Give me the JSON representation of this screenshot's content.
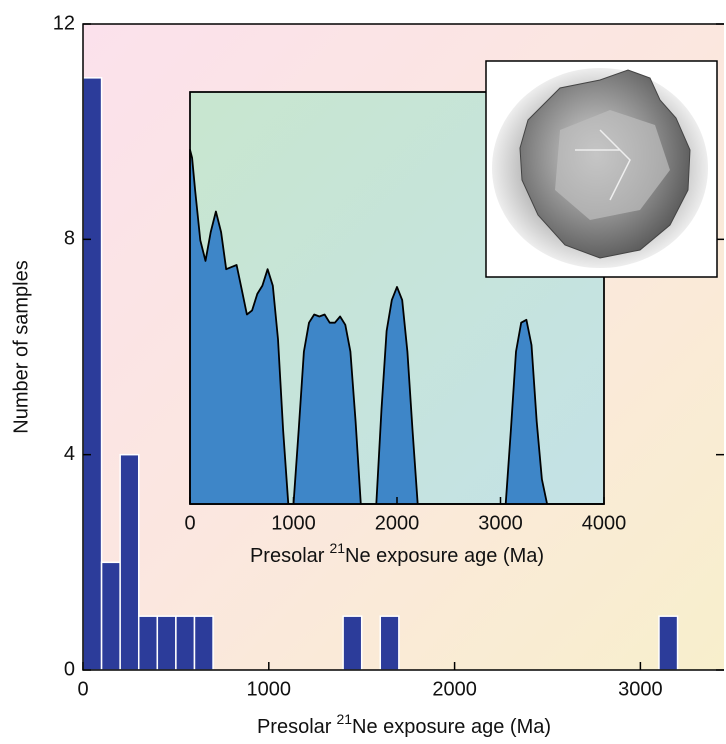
{
  "chart_data": [
    {
      "type": "histogram",
      "ylabel": "Number of samples",
      "xlabel": [
        "Presolar",
        "21",
        "Ne exposure age (Ma)"
      ],
      "bins": [
        0,
        100,
        200,
        300,
        400,
        500,
        600,
        700,
        800,
        900,
        1000,
        1100,
        1200,
        1300,
        1400,
        1500,
        1600,
        1700,
        1800,
        1900,
        2000,
        2100,
        2200,
        2300,
        2400,
        2500,
        2600,
        2700,
        2800,
        2900,
        3000,
        3100,
        3200
      ],
      "values": [
        11,
        2,
        4,
        1,
        1,
        1,
        1,
        0,
        0,
        0,
        0,
        0,
        0,
        0,
        1,
        0,
        1,
        0,
        0,
        0,
        0,
        0,
        0,
        0,
        0,
        0,
        0,
        0,
        0,
        0,
        0,
        1
      ],
      "color": "#2c3c9a",
      "xlim": [
        0,
        3450
      ],
      "ylim": [
        0,
        12
      ],
      "xticks": [
        0,
        1000,
        2000,
        3000
      ],
      "yticks": [
        0,
        4,
        8,
        12
      ]
    },
    {
      "type": "area",
      "xlabel": [
        "Presolar",
        "21",
        "Ne exposure age (Ma)"
      ],
      "x": [
        0,
        20,
        50,
        100,
        150,
        200,
        250,
        300,
        350,
        400,
        450,
        500,
        550,
        600,
        650,
        700,
        750,
        800,
        850,
        900,
        950,
        1000,
        1050,
        1100,
        1150,
        1200,
        1250,
        1300,
        1350,
        1400,
        1450,
        1500,
        1550,
        1600,
        1650,
        1700,
        1750,
        1800,
        1850,
        1900,
        1950,
        2000,
        2050,
        2100,
        2150,
        2200,
        2500,
        3000,
        3050,
        3100,
        3150,
        3200,
        3250,
        3300,
        3350,
        3400,
        3450,
        4000
      ],
      "values": [
        86,
        84,
        76,
        64,
        59,
        66,
        71,
        66,
        57,
        57.5,
        58,
        52,
        46,
        47,
        51,
        53,
        57,
        53,
        40,
        18,
        0,
        0,
        18,
        37,
        44,
        46,
        45.5,
        46,
        44,
        44,
        45.5,
        43.5,
        37,
        20,
        0,
        0,
        0,
        0,
        23,
        42,
        49.5,
        52.7,
        49.5,
        37,
        18,
        0,
        0,
        0,
        0,
        18,
        37,
        44,
        44.7,
        38.6,
        20,
        6,
        0,
        0
      ],
      "color": "#3e86c8",
      "xlim": [
        0,
        4000
      ],
      "ylim": [
        0,
        100
      ],
      "xticks": [
        0,
        1000,
        2000,
        3000,
        4000
      ]
    }
  ]
}
